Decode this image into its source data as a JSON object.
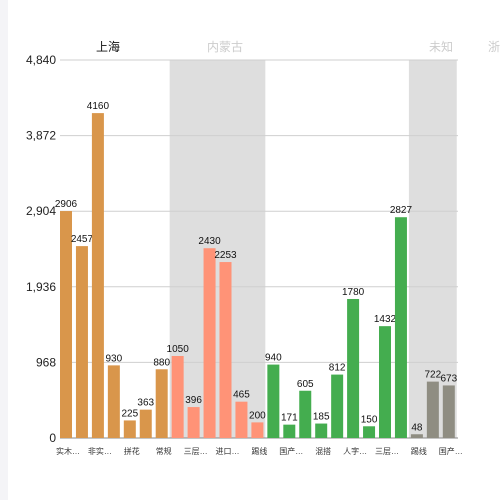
{
  "chart_data": {
    "type": "bar",
    "title": "",
    "xlabel": "",
    "ylabel": "",
    "ylim": [
      0,
      4840
    ],
    "y_ticks": [
      "0",
      "968",
      "1,936",
      "2,904",
      "3,872",
      "4,840"
    ],
    "y_tick_values": [
      0,
      968,
      1936,
      2904,
      3872,
      4840
    ],
    "grid": true,
    "groups": [
      {
        "name": "上海",
        "color": "#111111",
        "shaded": false
      },
      {
        "name": "内蒙古",
        "color": "#cccccc",
        "shaded": true
      },
      {
        "name": "",
        "color": "#cccccc",
        "shaded": false
      },
      {
        "name": "未知",
        "color": "#cccccc",
        "shaded": true
      },
      {
        "name": "浙江",
        "color": "#cccccc",
        "shaded": false
      }
    ],
    "bars": [
      {
        "value": 2906,
        "label": "2906",
        "category": "实木…",
        "group": 0,
        "color": "#d9964b"
      },
      {
        "value": 2457,
        "label": "2457",
        "category": "",
        "group": 0,
        "color": "#d9964b"
      },
      {
        "value": 4160,
        "label": "4160",
        "category": "非实…",
        "group": 0,
        "color": "#d9964b"
      },
      {
        "value": 930,
        "label": "930",
        "category": "",
        "group": 0,
        "color": "#d9964b"
      },
      {
        "value": 225,
        "label": "225",
        "category": "拼花",
        "group": 0,
        "color": "#d9964b"
      },
      {
        "value": 363,
        "label": "363",
        "category": "",
        "group": 0,
        "color": "#d9964b"
      },
      {
        "value": 880,
        "label": "880",
        "category": "常规",
        "group": 0,
        "color": "#d9964b"
      },
      {
        "value": 1050,
        "label": "1050",
        "category": "",
        "group": 1,
        "color": "#ff9377"
      },
      {
        "value": 396,
        "label": "396",
        "category": "三层…",
        "group": 1,
        "color": "#ff9377"
      },
      {
        "value": 2430,
        "label": "2430",
        "category": "",
        "group": 1,
        "color": "#ff9377"
      },
      {
        "value": 2253,
        "label": "2253",
        "category": "进口…",
        "group": 1,
        "color": "#ff9377"
      },
      {
        "value": 465,
        "label": "465",
        "category": "",
        "group": 1,
        "color": "#ff9377"
      },
      {
        "value": 200,
        "label": "200",
        "category": "踢线",
        "group": 1,
        "color": "#ff9377"
      },
      {
        "value": 940,
        "label": "940",
        "category": "",
        "group": 2,
        "color": "#44ad4f"
      },
      {
        "value": 171,
        "label": "171",
        "category": "国产…",
        "group": 2,
        "color": "#44ad4f"
      },
      {
        "value": 605,
        "label": "605",
        "category": "",
        "group": 2,
        "color": "#44ad4f"
      },
      {
        "value": 185,
        "label": "185",
        "category": "混搭",
        "group": 2,
        "color": "#44ad4f"
      },
      {
        "value": 812,
        "label": "812",
        "category": "",
        "group": 2,
        "color": "#44ad4f"
      },
      {
        "value": 1780,
        "label": "1780",
        "category": "人字…",
        "group": 2,
        "color": "#44ad4f"
      },
      {
        "value": 150,
        "label": "150",
        "category": "",
        "group": 2,
        "color": "#44ad4f"
      },
      {
        "value": 1432,
        "label": "1432",
        "category": "三层…",
        "group": 2,
        "color": "#44ad4f"
      },
      {
        "value": 2827,
        "label": "2827",
        "category": "",
        "group": 2,
        "color": "#44ad4f"
      },
      {
        "value": 48,
        "label": "48",
        "category": "踢线",
        "group": 3,
        "color": "#8f8d82"
      },
      {
        "value": 722,
        "label": "722",
        "category": "",
        "group": 3,
        "color": "#8f8d82"
      },
      {
        "value": 673,
        "label": "673",
        "category": "国产…",
        "group": 3,
        "color": "#8f8d82"
      }
    ]
  }
}
